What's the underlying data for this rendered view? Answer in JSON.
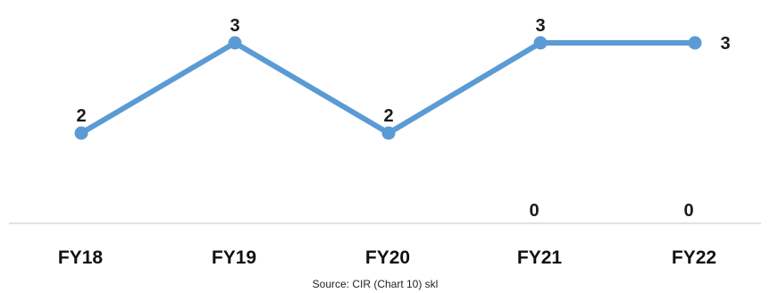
{
  "chart_data": {
    "type": "line",
    "categories": [
      "FY18",
      "FY19",
      "FY20",
      "FY21",
      "FY22"
    ],
    "series": [
      {
        "values": [
          2,
          3,
          2,
          3,
          3
        ],
        "data_labels": [
          "2",
          "3",
          "2",
          "3",
          "3"
        ]
      }
    ],
    "extra_labels": [
      {
        "category": "FY21",
        "text": "0"
      },
      {
        "category": "FY22",
        "text": "0"
      }
    ],
    "ylim": [
      0,
      4
    ],
    "grid": false,
    "legend": "none",
    "line_color": "#5b9bd5",
    "source": "Source: CIR (Chart 10) skl"
  }
}
